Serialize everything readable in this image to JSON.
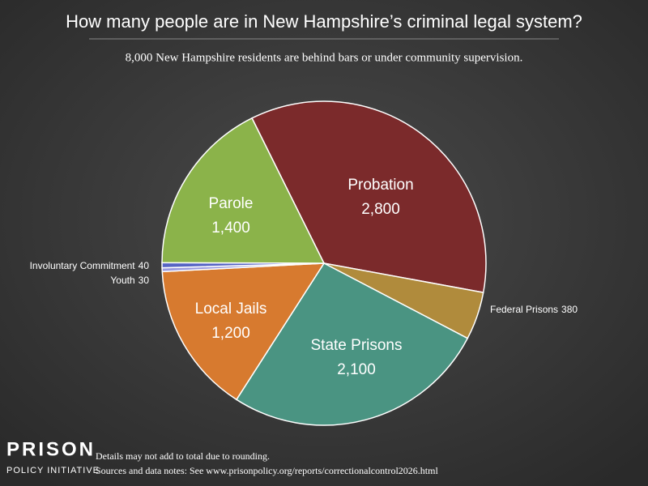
{
  "chart_data": {
    "type": "pie",
    "title": "How many people are in New Hampshire’s criminal legal system?",
    "subtitle": "8,000 New Hampshire residents are behind bars or under community supervision.",
    "categories": [
      "Probation",
      "Federal Prisons",
      "State Prisons",
      "Local Jails",
      "Youth",
      "Involuntary Commitment",
      "Parole"
    ],
    "values": [
      2800,
      380,
      2100,
      1200,
      30,
      40,
      1400
    ],
    "value_labels": [
      "2,800",
      "380",
      "2,100",
      "1,200",
      "30",
      "40",
      "1,400"
    ],
    "colors": [
      "#7b2a2b",
      "#b08b3c",
      "#4a9482",
      "#d77a2f",
      "#9a9ae0",
      "#5563c4",
      "#8bb34a"
    ],
    "logo": [
      "PRISON",
      "POLICY INITIATIVE"
    ],
    "notes": [
      "Details may not add to total due to rounding.",
      "Sources and data notes: See www.prisonpolicy.org/reports/correctionalcontrol2026.html"
    ]
  }
}
